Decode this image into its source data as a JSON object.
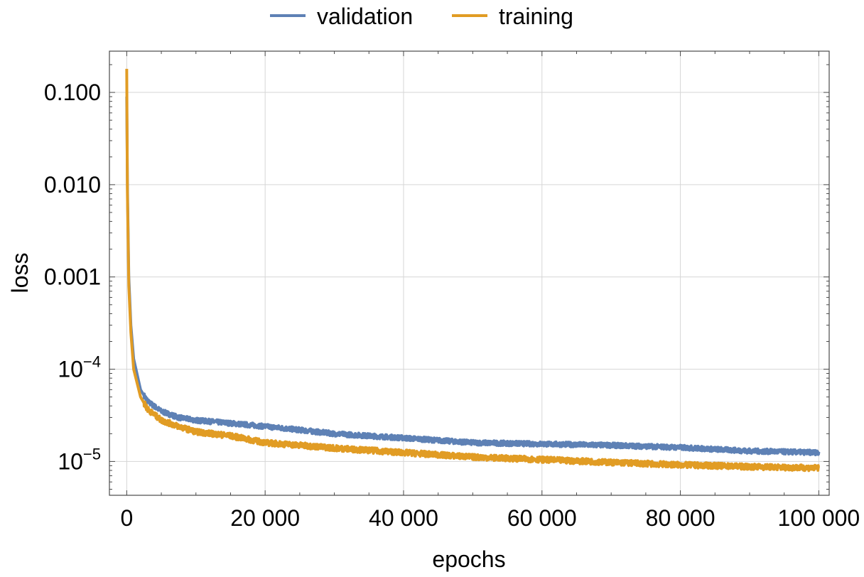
{
  "chart_data": {
    "type": "line",
    "xlabel": "epochs",
    "ylabel": "loss",
    "xscale": "linear",
    "yscale": "log",
    "xlim": [
      -2500,
      101500
    ],
    "ylim": [
      4.3e-06,
      0.28
    ],
    "grid": true,
    "legend_position": "top",
    "x_ticks": [
      {
        "value": 0,
        "label": "0"
      },
      {
        "value": 20000,
        "label": "20 000"
      },
      {
        "value": 40000,
        "label": "40 000"
      },
      {
        "value": 60000,
        "label": "60 000"
      },
      {
        "value": 80000,
        "label": "80 000"
      },
      {
        "value": 100000,
        "label": "100 000"
      }
    ],
    "y_ticks": [
      {
        "value": 0.1,
        "label": "0.100"
      },
      {
        "value": 0.01,
        "label": "0.010"
      },
      {
        "value": 0.001,
        "label": "0.001"
      },
      {
        "value": 0.0001,
        "base": "10",
        "exp": "−4"
      },
      {
        "value": 1e-05,
        "base": "10",
        "exp": "−5"
      }
    ],
    "series": [
      {
        "name": "validation",
        "color": "#5e81b5",
        "x": [
          0,
          100,
          300,
          600,
          1000,
          2000,
          3000,
          5000,
          7500,
          10000,
          15000,
          20000,
          25000,
          30000,
          40000,
          50000,
          60000,
          70000,
          80000,
          90000,
          100000
        ],
        "y": [
          0.09,
          0.01,
          0.001,
          0.0003,
          0.00013,
          6e-05,
          4.5e-05,
          3.5e-05,
          3e-05,
          2.8e-05,
          2.6e-05,
          2.4e-05,
          2.2e-05,
          2e-05,
          1.8e-05,
          1.6e-05,
          1.55e-05,
          1.5e-05,
          1.42e-05,
          1.3e-05,
          1.25e-05
        ]
      },
      {
        "name": "training",
        "color": "#e19c24",
        "x": [
          0,
          100,
          300,
          600,
          1000,
          2000,
          3000,
          5000,
          7500,
          10000,
          15000,
          20000,
          25000,
          30000,
          40000,
          50000,
          60000,
          70000,
          80000,
          90000,
          100000
        ],
        "y": [
          0.18,
          0.008,
          0.0008,
          0.00025,
          0.0001,
          5e-05,
          3.7e-05,
          2.8e-05,
          2.4e-05,
          2.1e-05,
          1.9e-05,
          1.6e-05,
          1.5e-05,
          1.4e-05,
          1.25e-05,
          1.12e-05,
          1.05e-05,
          9.8e-06,
          9.2e-06,
          8.8e-06,
          8.5e-06
        ]
      }
    ]
  }
}
